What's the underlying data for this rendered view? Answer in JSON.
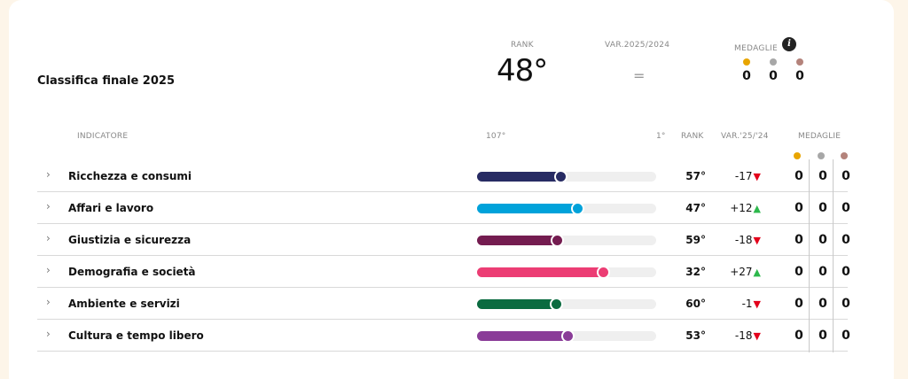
{
  "summary": {
    "title": "Classifica finale 2025",
    "rank_label": "RANK",
    "rank_value": "48°",
    "var_label": "VAR.2025/2024",
    "var_value": "=",
    "medals_label": "MEDAGLIE",
    "info_icon": "i",
    "medals": [
      "0",
      "0",
      "0"
    ]
  },
  "colors": {
    "gold": "#e8a500",
    "silver": "#a7a7a7",
    "bronze": "#b4837b",
    "down": "#e3001b",
    "up": "#2db84c"
  },
  "table": {
    "headers": {
      "indicator": "INDICATORE",
      "scale_min": "107°",
      "scale_max": "1°",
      "rank": "RANK",
      "var": "VAR.'25/'24",
      "medals": "MEDAGLIE"
    },
    "rank_scale_max": 107,
    "rows": [
      {
        "label": "Ricchezza e consumi",
        "rank_value": 57,
        "rank": "57°",
        "var": "-17",
        "trend": "down",
        "color": "#272b63",
        "medals": [
          "0",
          "0",
          "0"
        ]
      },
      {
        "label": "Affari e lavoro",
        "rank_value": 47,
        "rank": "47°",
        "var": "+12",
        "trend": "up",
        "color": "#00a2da",
        "medals": [
          "0",
          "0",
          "0"
        ]
      },
      {
        "label": "Giustizia e sicurezza",
        "rank_value": 59,
        "rank": "59°",
        "var": "-18",
        "trend": "down",
        "color": "#741c50",
        "medals": [
          "0",
          "0",
          "0"
        ]
      },
      {
        "label": "Demografia e società",
        "rank_value": 32,
        "rank": "32°",
        "var": "+27",
        "trend": "up",
        "color": "#ec3d74",
        "medals": [
          "0",
          "0",
          "0"
        ]
      },
      {
        "label": "Ambiente e servizi",
        "rank_value": 60,
        "rank": "60°",
        "var": "-1",
        "trend": "down",
        "color": "#0b6b40",
        "medals": [
          "0",
          "0",
          "0"
        ]
      },
      {
        "label": "Cultura e tempo libero",
        "rank_value": 53,
        "rank": "53°",
        "var": "-18",
        "trend": "down",
        "color": "#8a3c98",
        "medals": [
          "0",
          "0",
          "0"
        ]
      }
    ]
  }
}
